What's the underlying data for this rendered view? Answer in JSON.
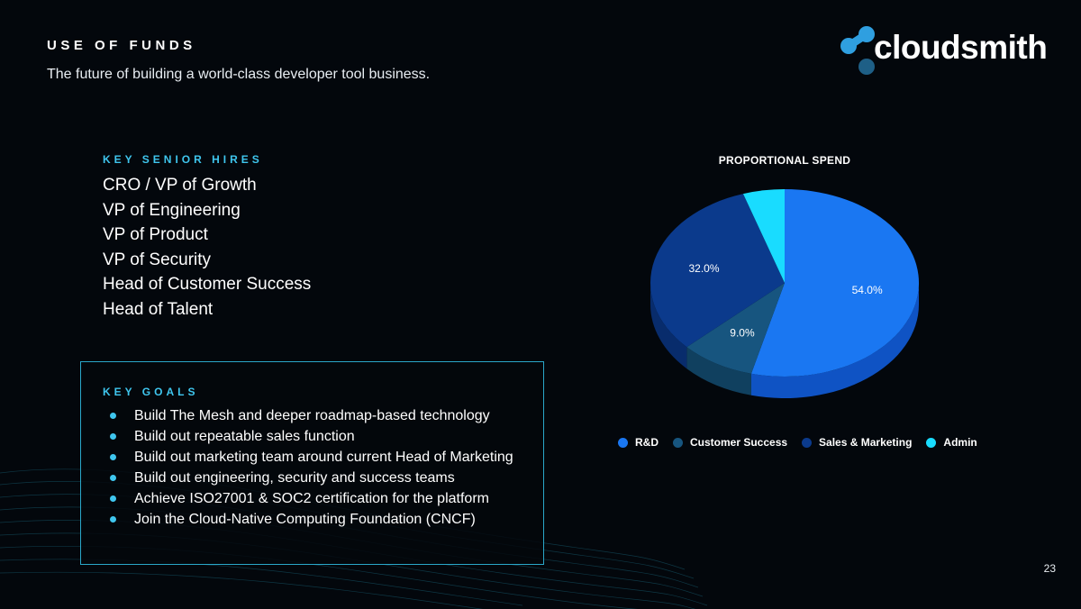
{
  "slide": {
    "title": "USE OF FUNDS",
    "subtitle": "The future of building a world-class developer tool business.",
    "page_number": "23"
  },
  "logo": {
    "text": "cloudsmith",
    "icon": "cloudsmith-logo-icon"
  },
  "hires": {
    "heading": "KEY SENIOR HIRES",
    "items": [
      "CRO / VP of Growth",
      "VP of Engineering",
      "VP of Product",
      "VP of Security",
      "Head of Customer Success",
      "Head of Talent"
    ]
  },
  "goals": {
    "heading": "KEY GOALS",
    "items": [
      "Build The Mesh and deeper roadmap-based technology",
      "Build out repeatable sales function",
      "Build out marketing team around current Head of Marketing",
      "Build out engineering, security and success teams",
      "Achieve ISO27001 & SOC2 certification for the platform",
      "Join the Cloud-Native Computing Foundation (CNCF)"
    ]
  },
  "colors": {
    "accent": "#3fc6ee",
    "background": "#03070c"
  },
  "chart_data": {
    "type": "pie",
    "title": "PROPORTIONAL SPEND",
    "style": "3d",
    "legend_position": "bottom",
    "categories": [
      "R&D",
      "Customer Success",
      "Sales & Marketing",
      "Admin"
    ],
    "values": [
      54.0,
      9.0,
      32.0,
      5.0
    ],
    "data_labels": [
      "54.0%",
      "9.0%",
      "32.0%",
      ""
    ],
    "colors": [
      "#1a77f2",
      "#17557f",
      "#0b3a8c",
      "#19dcff"
    ]
  }
}
